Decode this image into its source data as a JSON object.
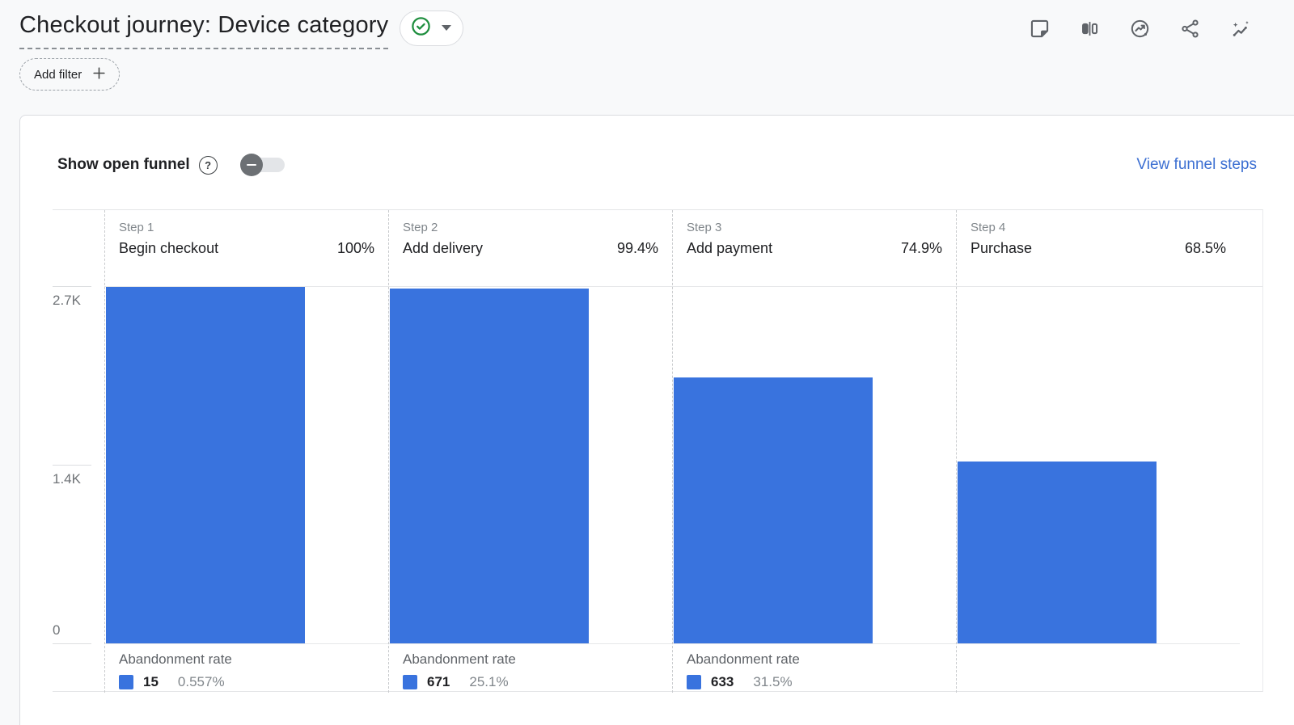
{
  "page": {
    "title": "Checkout journey: Device category",
    "add_filter_label": "Add filter",
    "toolbar_icons": [
      "sticky-note-icon",
      "comparison-icon",
      "snapshot-trend-icon",
      "share-icon",
      "insights-icon"
    ],
    "status_badge": "saved-check"
  },
  "controls": {
    "show_open_funnel_label": "Show open funnel",
    "toggle_state": "off",
    "view_funnel_steps_label": "View funnel steps"
  },
  "colors": {
    "bar": "#3973de",
    "link": "#3c6fd2",
    "check_green": "#1e8e3e",
    "icon_gray": "#5f6368",
    "page_bg": "#f8f9fa"
  },
  "chart_data": {
    "type": "funnel",
    "title": "Checkout journey: Device category",
    "grid": "top-gridline-only",
    "legend_position": "none",
    "y_axis": {
      "ticks": [
        "2.7K",
        "1.4K",
        "0"
      ],
      "max": 2700,
      "min": 0
    },
    "steps": [
      {
        "step_label": "Step 1",
        "name": "Begin checkout",
        "completion_rate": "100%",
        "users_est": 2694,
        "abandonment": {
          "label": "Abandonment rate",
          "count": "15",
          "rate": "0.557%"
        }
      },
      {
        "step_label": "Step 2",
        "name": "Add delivery",
        "completion_rate": "99.4%",
        "users_est": 2679,
        "abandonment": {
          "label": "Abandonment rate",
          "count": "671",
          "rate": "25.1%"
        }
      },
      {
        "step_label": "Step 3",
        "name": "Add payment",
        "completion_rate": "74.9%",
        "users_est": 2008,
        "abandonment": {
          "label": "Abandonment rate",
          "count": "633",
          "rate": "31.5%"
        }
      },
      {
        "step_label": "Step 4",
        "name": "Purchase",
        "completion_rate": "68.5%",
        "users_est": 1375,
        "abandonment": null
      }
    ]
  }
}
